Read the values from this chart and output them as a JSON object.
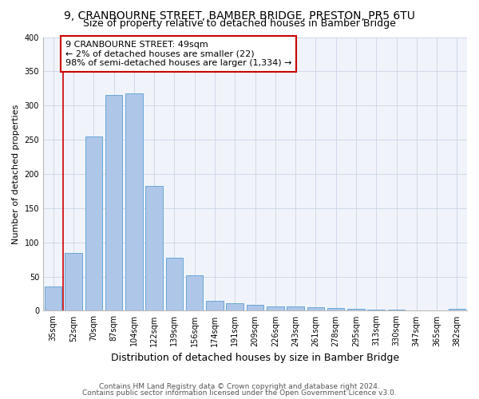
{
  "title1": "9, CRANBOURNE STREET, BAMBER BRIDGE, PRESTON, PR5 6TU",
  "title2": "Size of property relative to detached houses in Bamber Bridge",
  "xlabel": "Distribution of detached houses by size in Bamber Bridge",
  "ylabel": "Number of detached properties",
  "categories": [
    "35sqm",
    "52sqm",
    "70sqm",
    "87sqm",
    "104sqm",
    "122sqm",
    "139sqm",
    "156sqm",
    "174sqm",
    "191sqm",
    "209sqm",
    "226sqm",
    "243sqm",
    "261sqm",
    "278sqm",
    "295sqm",
    "313sqm",
    "330sqm",
    "347sqm",
    "365sqm",
    "382sqm"
  ],
  "values": [
    35,
    85,
    255,
    315,
    318,
    182,
    78,
    52,
    14,
    11,
    9,
    6,
    6,
    5,
    4,
    3,
    2,
    2,
    1,
    1,
    3
  ],
  "bar_color": "#aec6e8",
  "bar_edge_color": "#5a9fd4",
  "highlight_line_color": "#cc0000",
  "annotation_text": "9 CRANBOURNE STREET: 49sqm\n← 2% of detached houses are smaller (22)\n98% of semi-detached houses are larger (1,334) →",
  "annotation_box_color": "#ffffff",
  "annotation_box_edge": "#cc0000",
  "footer1": "Contains HM Land Registry data © Crown copyright and database right 2024.",
  "footer2": "Contains public sector information licensed under the Open Government Licence v3.0.",
  "ylim": [
    0,
    400
  ],
  "yticks": [
    0,
    50,
    100,
    150,
    200,
    250,
    300,
    350,
    400
  ],
  "grid_color": "#d0d8e8",
  "bg_color": "#f0f4fa",
  "title1_fontsize": 10,
  "title2_fontsize": 9,
  "xlabel_fontsize": 9,
  "ylabel_fontsize": 8,
  "tick_fontsize": 7,
  "annotation_fontsize": 8,
  "footer_fontsize": 6.5
}
